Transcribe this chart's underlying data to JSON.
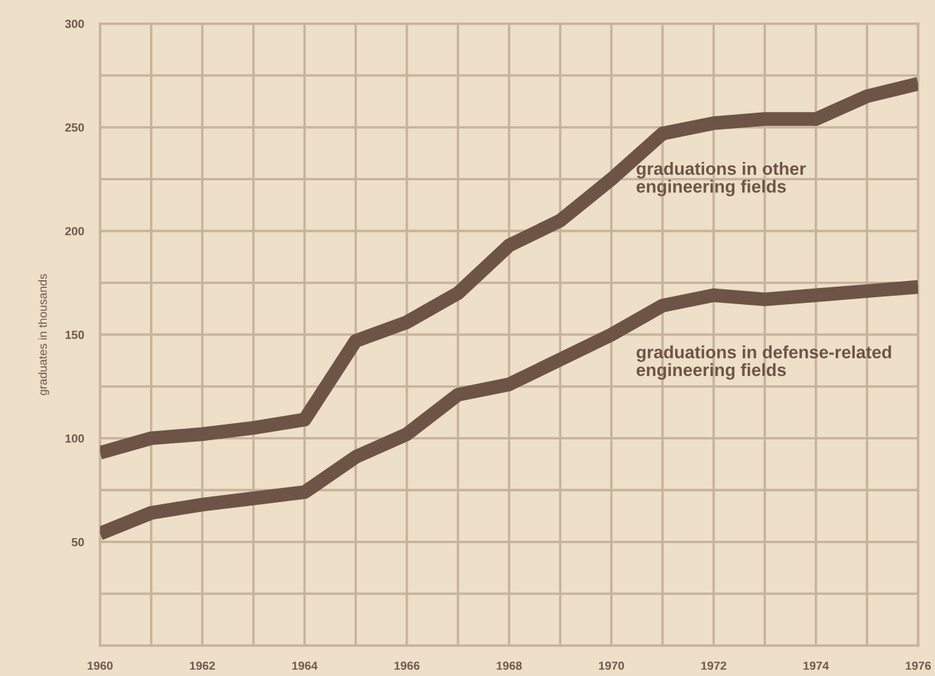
{
  "chart_data": {
    "type": "line",
    "ylabel": "graduates in thousands",
    "x": [
      1960,
      1961,
      1962,
      1963,
      1964,
      1965,
      1966,
      1967,
      1968,
      1969,
      1970,
      1971,
      1972,
      1973,
      1974,
      1975,
      1976
    ],
    "series": [
      {
        "name": "graduations in other\nengineering fields",
        "color": "#6e5446",
        "values": [
          93,
          100,
          102,
          105,
          109,
          147,
          156,
          170,
          193,
          205,
          225,
          247,
          252,
          254,
          254,
          265,
          271
        ]
      },
      {
        "name": "graduations in defense-related\nengineering fields",
        "color": "#6e5446",
        "values": [
          54,
          64,
          68,
          71,
          74,
          91,
          102,
          121,
          126,
          138,
          150,
          164,
          169,
          167,
          169,
          171,
          173
        ]
      }
    ],
    "xlim": [
      1960,
      1976
    ],
    "xticks": [
      1960,
      {
        "value": 1961,
        "label": null
      },
      1962,
      {
        "value": 1963,
        "label": null
      },
      1964,
      {
        "value": 1965,
        "label": null
      },
      1966,
      {
        "value": 1967,
        "label": null
      },
      1968,
      {
        "value": 1969,
        "label": null
      },
      1970,
      {
        "value": 1971,
        "label": null
      },
      1972,
      {
        "value": 1973,
        "label": null
      },
      1974,
      {
        "value": 1975,
        "label": null
      },
      1976
    ],
    "ylim": [
      0,
      300
    ],
    "yticks": [
      {
        "value": 0,
        "label": null
      },
      {
        "value": 25,
        "label": null
      },
      50,
      {
        "value": 75,
        "label": null
      },
      100,
      {
        "value": 125,
        "label": null
      },
      150,
      {
        "value": 175,
        "label": null
      },
      200,
      {
        "value": 225,
        "label": null
      },
      250,
      {
        "value": 275,
        "label": null
      },
      300
    ],
    "grid": true,
    "marker": "none",
    "line_style": "solid",
    "legend": false
  }
}
